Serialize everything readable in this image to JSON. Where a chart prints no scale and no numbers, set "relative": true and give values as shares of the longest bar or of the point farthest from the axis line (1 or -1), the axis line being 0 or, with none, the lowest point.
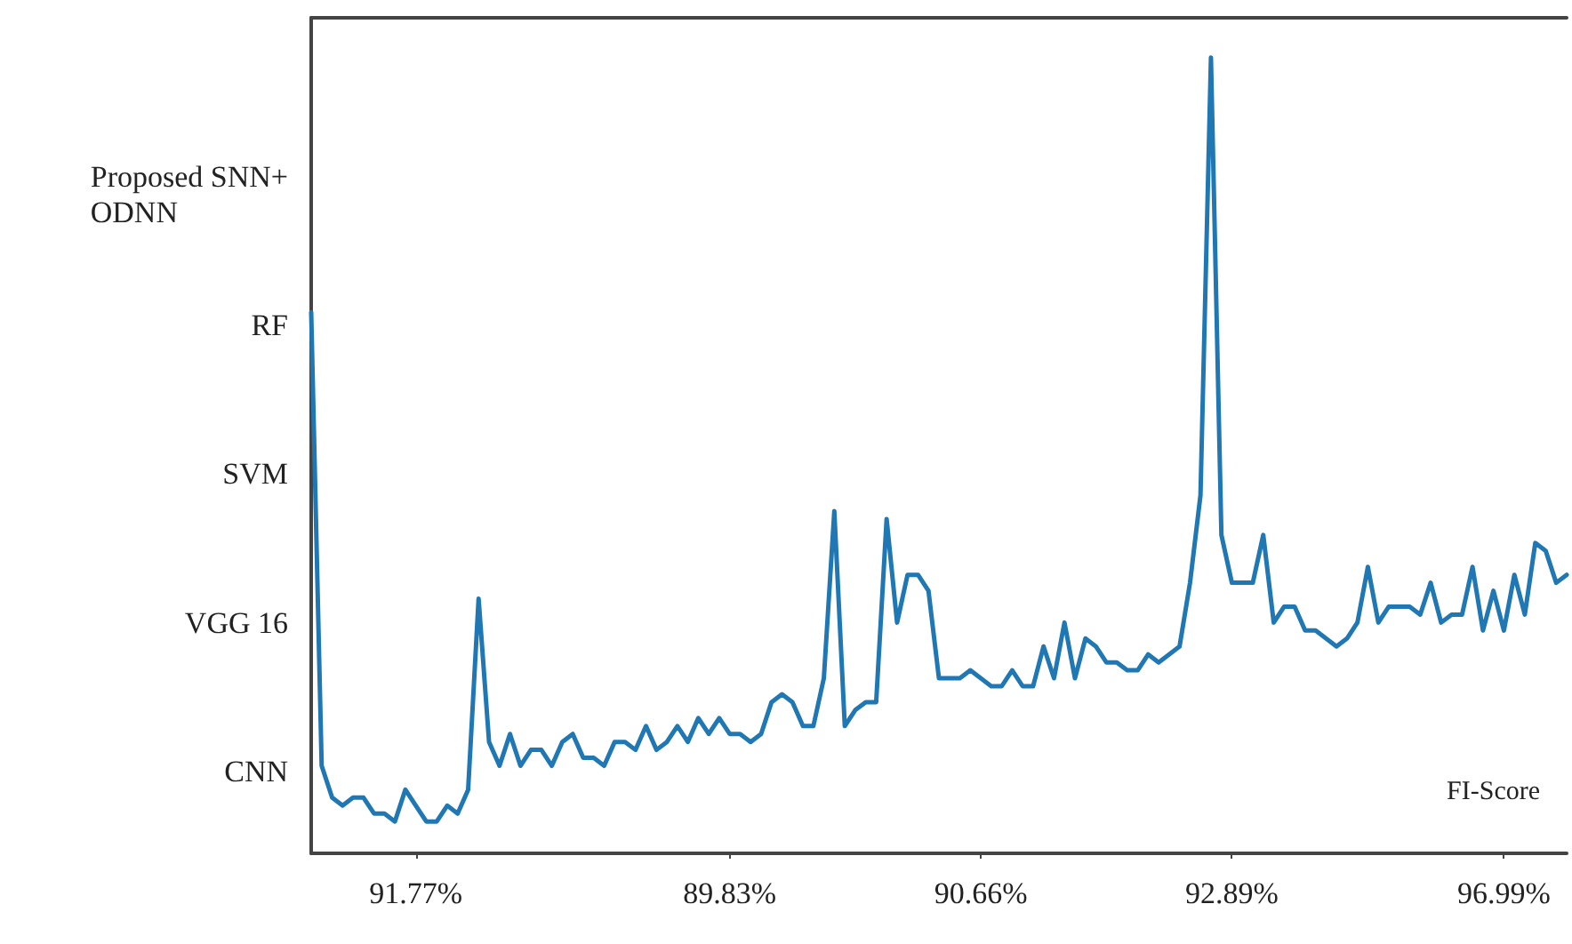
{
  "chart_data": {
    "type": "line",
    "relative": true,
    "annotations": [
      "Proposed SNN+\nODNN",
      "RF",
      "SVM",
      "VGG 16",
      "CNN",
      "FI-Score"
    ],
    "categories": [
      null,
      null,
      null,
      null,
      null,
      null,
      null,
      null,
      null,
      null,
      "91.77%",
      null,
      null,
      null,
      null,
      null,
      null,
      null,
      null,
      null,
      null,
      null,
      null,
      null,
      null,
      null,
      null,
      null,
      null,
      null,
      null,
      null,
      null,
      null,
      null,
      null,
      null,
      null,
      null,
      null,
      "89.83%",
      null,
      null,
      null,
      null,
      null,
      null,
      null,
      null,
      null,
      null,
      null,
      null,
      null,
      null,
      null,
      null,
      null,
      null,
      null,
      null,
      null,
      null,
      null,
      "90.66%",
      null,
      null,
      null,
      null,
      null,
      null,
      null,
      null,
      null,
      null,
      null,
      null,
      null,
      null,
      null,
      null,
      null,
      null,
      null,
      null,
      null,
      null,
      null,
      "92.89%",
      null,
      null,
      null,
      null,
      null,
      null,
      null,
      null,
      null,
      null,
      null,
      null,
      null,
      null,
      null,
      null,
      null,
      null,
      null,
      null,
      null,
      null,
      null,
      null,
      null,
      "96.99%",
      null,
      null,
      null,
      null,
      null,
      null
    ],
    "line_style": "solid",
    "series": [
      {
        "color": "#1f77b4",
        "values": [
          0.68,
          0.11,
          0.07,
          0.06,
          0.07,
          0.07,
          0.05,
          0.05,
          0.04,
          0.08,
          0.06,
          0.04,
          0.04,
          0.06,
          0.05,
          0.08,
          0.32,
          0.14,
          0.11,
          0.15,
          0.11,
          0.13,
          0.13,
          0.11,
          0.14,
          0.15,
          0.12,
          0.12,
          0.11,
          0.14,
          0.14,
          0.13,
          0.16,
          0.13,
          0.14,
          0.16,
          0.14,
          0.17,
          0.15,
          0.17,
          0.15,
          0.15,
          0.14,
          0.15,
          0.19,
          0.2,
          0.19,
          0.16,
          0.16,
          0.22,
          0.43,
          0.16,
          0.18,
          0.19,
          0.19,
          0.42,
          0.29,
          0.35,
          0.35,
          0.33,
          0.22,
          0.22,
          0.22,
          0.23,
          0.22,
          0.21,
          0.21,
          0.23,
          0.21,
          0.21,
          0.26,
          0.22,
          0.29,
          0.22,
          0.27,
          0.26,
          0.24,
          0.24,
          0.23,
          0.23,
          0.25,
          0.24,
          0.25,
          0.26,
          0.34,
          0.45,
          1,
          0.4,
          0.34,
          0.34,
          0.34,
          0.4,
          0.29,
          0.31,
          0.31,
          0.28,
          0.28,
          0.27,
          0.26,
          0.27,
          0.29,
          0.36,
          0.29,
          0.31,
          0.31,
          0.31,
          0.3,
          0.34,
          0.29,
          0.3,
          0.3,
          0.36,
          0.28,
          0.33,
          0.28,
          0.35,
          0.3,
          0.39,
          0.38,
          0.34,
          0.35
        ]
      }
    ]
  }
}
